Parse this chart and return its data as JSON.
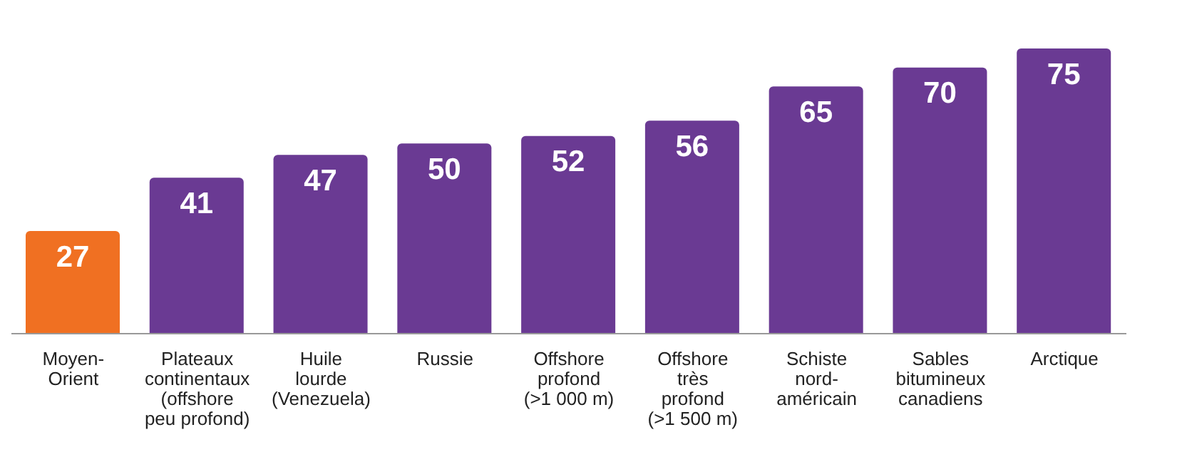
{
  "chart_data": {
    "type": "bar",
    "categories": [
      "Moyen-\nOrient",
      "Plateaux\ncontinentaux\n(offshore\npeu profond)",
      "Huile\nlourde\n(Venezuela)",
      "Russie",
      "Offshore\nprofond\n(>1 000 m)",
      "Offshore\ntrès\nprofond\n(>1 500 m)",
      "Schiste\nnord-\naméricain",
      "Sables\nbitumineux\ncanadiens",
      "Arctique"
    ],
    "values": [
      27,
      41,
      47,
      50,
      52,
      56,
      65,
      70,
      75
    ],
    "colors": [
      "#f07022",
      "#6a3a93",
      "#6a3a93",
      "#6a3a93",
      "#6a3a93",
      "#6a3a93",
      "#6a3a93",
      "#6a3a93",
      "#6a3a93"
    ],
    "data_labels": true
  }
}
